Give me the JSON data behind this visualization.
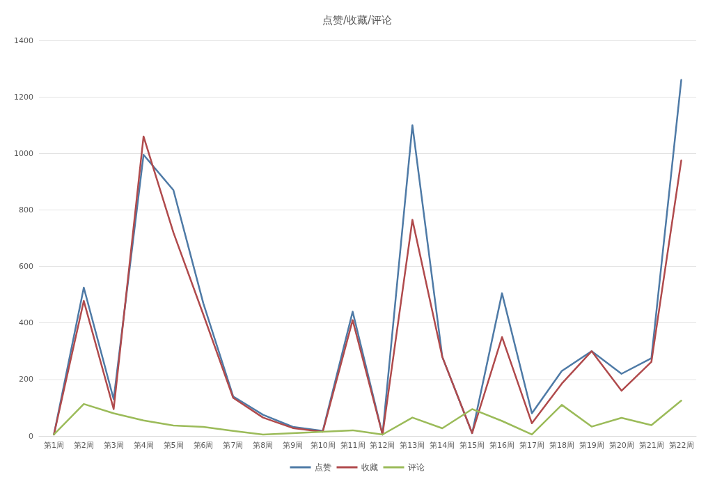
{
  "chart_data": {
    "type": "line",
    "title": "点赞/收藏/评论",
    "categories": [
      "第1周",
      "第2周",
      "第3周",
      "第4周",
      "第5周",
      "第6周",
      "第7周",
      "第8周",
      "第9周",
      "第10周",
      "第11周",
      "第12周",
      "第13周",
      "第14周",
      "第15周",
      "第16周",
      "第17周",
      "第18周",
      "第19周",
      "第20周",
      "第21周",
      "第22周"
    ],
    "series": [
      {
        "name": "点赞",
        "color": "#4e7aa6",
        "values": [
          5,
          525,
          130,
          995,
          870,
          470,
          140,
          75,
          32,
          18,
          440,
          5,
          1100,
          280,
          10,
          505,
          80,
          230,
          300,
          220,
          275,
          1260
        ]
      },
      {
        "name": "收藏",
        "color": "#b04a4c",
        "values": [
          5,
          478,
          95,
          1060,
          720,
          430,
          135,
          65,
          28,
          15,
          410,
          5,
          765,
          280,
          10,
          350,
          45,
          185,
          300,
          160,
          262,
          975
        ]
      },
      {
        "name": "评论",
        "color": "#9bbb59",
        "values": [
          5,
          113,
          80,
          55,
          37,
          32,
          18,
          5,
          10,
          15,
          20,
          5,
          65,
          27,
          95,
          53,
          5,
          110,
          33,
          64,
          38,
          125
        ]
      }
    ],
    "ylim": [
      0,
      1400
    ],
    "yticks": [
      0,
      200,
      400,
      600,
      800,
      1000,
      1200,
      1400
    ],
    "grid": "y",
    "legend": "bottom",
    "marker": "none",
    "line_style": "solid"
  }
}
